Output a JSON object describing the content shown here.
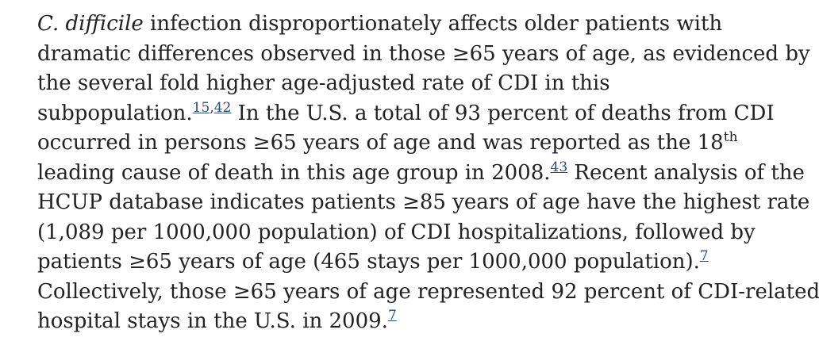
{
  "paragraph": {
    "lines": [
      {
        "species": "C. difficile",
        "text": " infection disproportionately affects older patients with"
      },
      {
        "text": "dramatic differences observed in those ≥65 years of age, as evidenced by"
      },
      {
        "text": "the several fold higher age-adjusted rate of CDI in this"
      },
      {
        "text_before": "subpopulation.",
        "cite_a": "15",
        "cite_sep": ",",
        "cite_b": "42",
        "text_after": " In the U.S. a total of 93 percent of deaths from CDI"
      },
      {
        "text": "occurred in persons ≥65 years of age and was reported as the 18",
        "sup": "th"
      },
      {
        "text_before": "leading cause of death in this age group in 2008.",
        "cite": "43",
        "text_after": " Recent analysis of the"
      },
      {
        "text": "HCUP database indicates patients ≥85 years of age have the highest rate"
      },
      {
        "text": "(1,089 per 1000,000 population) of CDI hospitalizations, followed by"
      },
      {
        "text_before": "patients ≥65 years of age (465 stays per 1000,000 population).",
        "cite": "7"
      },
      {
        "text": "Collectively, those ≥65 years of age represented 92 percent of CDI-related"
      },
      {
        "text_before": "hospital stays in the U.S. in 2009.",
        "cite": "7"
      }
    ]
  },
  "colors": {
    "text": "#222222",
    "link": "#2c4a7a",
    "background": "#ffffff"
  }
}
